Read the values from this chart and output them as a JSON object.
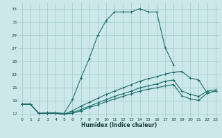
{
  "xlabel": "Humidex (Indice chaleur)",
  "background_color": "#cce8ea",
  "grid_color": "#a0c8cc",
  "line_color": "#1e6b6b",
  "xlim": [
    -0.5,
    23.5
  ],
  "ylim": [
    16.5,
    34.0
  ],
  "yticks": [
    17,
    19,
    21,
    23,
    25,
    27,
    29,
    31,
    33
  ],
  "xticks": [
    0,
    1,
    2,
    3,
    4,
    5,
    6,
    7,
    8,
    9,
    10,
    11,
    12,
    13,
    14,
    15,
    16,
    17,
    18,
    19,
    20,
    21,
    22,
    23
  ],
  "lines": [
    {
      "x": [
        0,
        1,
        2,
        3,
        4,
        5,
        6,
        7,
        8,
        9,
        10,
        11,
        12,
        13,
        14,
        15,
        16,
        17,
        18
      ],
      "y": [
        18.5,
        18.5,
        17.1,
        17.2,
        17.2,
        17.1,
        19.2,
        22.5,
        25.5,
        29.0,
        31.3,
        32.6,
        32.6,
        32.6,
        33.1,
        32.6,
        32.6,
        27.2,
        24.5
      ]
    },
    {
      "x": [
        0,
        1,
        2,
        3,
        4,
        5,
        6,
        7,
        8,
        9,
        10,
        11,
        12,
        13,
        14,
        15,
        16,
        17,
        18,
        19,
        20,
        21,
        22,
        23
      ],
      "y": [
        18.5,
        18.5,
        17.1,
        17.1,
        17.1,
        17.0,
        17.5,
        18.2,
        18.8,
        19.4,
        20.0,
        20.5,
        21.0,
        21.5,
        22.0,
        22.4,
        22.7,
        23.1,
        23.4,
        23.5,
        22.5,
        22.2,
        20.2,
        20.5
      ]
    },
    {
      "x": [
        0,
        1,
        2,
        3,
        4,
        5,
        6,
        7,
        8,
        9,
        10,
        11,
        12,
        13,
        14,
        15,
        16,
        17,
        18,
        19,
        20,
        21,
        22,
        23
      ],
      "y": [
        18.5,
        18.5,
        17.1,
        17.1,
        17.1,
        17.0,
        17.2,
        17.7,
        18.2,
        18.7,
        19.2,
        19.7,
        20.1,
        20.5,
        21.0,
        21.3,
        21.6,
        22.0,
        22.2,
        20.5,
        20.0,
        19.7,
        20.5,
        20.7
      ]
    },
    {
      "x": [
        0,
        1,
        2,
        3,
        4,
        5,
        6,
        7,
        8,
        9,
        10,
        11,
        12,
        13,
        14,
        15,
        16,
        17,
        18,
        19,
        20,
        21,
        22,
        23
      ],
      "y": [
        18.5,
        18.5,
        17.1,
        17.1,
        17.1,
        17.0,
        17.1,
        17.5,
        18.0,
        18.4,
        18.9,
        19.3,
        19.7,
        20.1,
        20.5,
        20.8,
        21.0,
        21.3,
        21.5,
        19.8,
        19.3,
        19.1,
        20.2,
        20.5
      ]
    }
  ]
}
